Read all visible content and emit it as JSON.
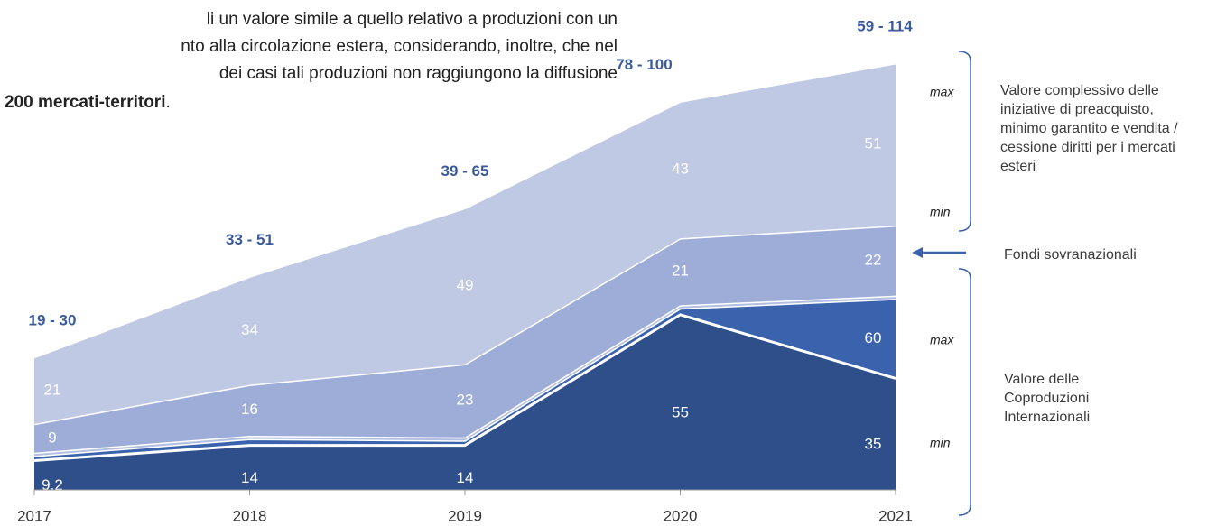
{
  "document_text": {
    "lines": [
      "li un valore simile a quello relativo a produzioni con un",
      "nto alla circolazione estera, considerando, inoltre, che nel",
      "dei casi tali produzioni non raggiungono la diffusione"
    ],
    "bold": "200 mercati-territori",
    "end": "."
  },
  "chart_data": {
    "type": "area",
    "categories": [
      "2017",
      "2018",
      "2019",
      "2020",
      "2021"
    ],
    "series": [
      {
        "color": "#3a62ad",
        "overlay": true,
        "values": [
          10.7,
          16,
          15.5,
          57,
          60
        ],
        "value_labels": [
          null,
          null,
          null,
          null,
          "60"
        ]
      },
      {
        "color": "#2f4f8a",
        "overlay": true,
        "values": [
          9.2,
          14,
          14,
          55,
          35
        ],
        "value_labels": [
          "9,2",
          "14",
          "14",
          "55",
          "35"
        ]
      },
      {
        "color": "#b3bfe0",
        "values": [
          1,
          1,
          1,
          1,
          1
        ],
        "value_labels": [
          null,
          null,
          null,
          null,
          null
        ]
      },
      {
        "color": "#9dadd8",
        "values": [
          9,
          16,
          23,
          21,
          22
        ],
        "value_labels": [
          "9",
          "16",
          "23",
          "21",
          "22"
        ]
      },
      {
        "color": "#c0c9e4",
        "values": [
          21,
          34,
          49,
          43,
          51
        ],
        "value_labels": [
          "21",
          "34",
          "49",
          "43",
          "51"
        ]
      }
    ],
    "range_labels": [
      "19 - 30",
      "33 - 51",
      "39 - 65",
      "78 - 100",
      "59 - 114"
    ],
    "annotations": {
      "top_max": "max",
      "top_min": "min",
      "top_text": "Valore complessivo delle iniziative di preacquisto, minimo garantito e vendita / cessione diritti per i mercati esteri",
      "arrow_text": "Fondi sovranazionali",
      "bottom_max": "max",
      "bottom_min": "min",
      "bottom_text": "Valore delle Coproduzioni Internazionali"
    }
  }
}
